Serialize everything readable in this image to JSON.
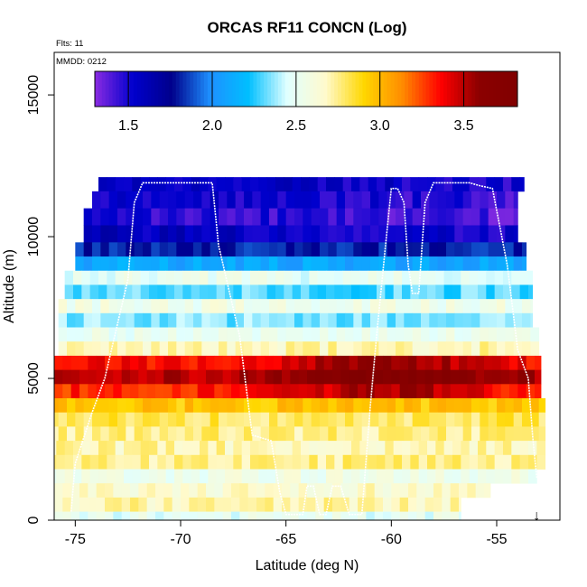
{
  "chart_data": {
    "type": "heatmap",
    "title": "ORCAS RF11 CONCN (Log)",
    "flights_label": "Flts: 11",
    "date_label": "MMDD: 0212",
    "xlabel": "Latitude (deg N)",
    "ylabel": "Altitude (m)",
    "xlim": [
      -76.0,
      -52.0
    ],
    "ylim": [
      0,
      16500
    ],
    "x_ticks": [
      -75,
      -70,
      -65,
      -60,
      -55
    ],
    "x_tick_labels": [
      "-75",
      "-70",
      "-65",
      "-60",
      "-55"
    ],
    "y_ticks": [
      0,
      5000,
      10000,
      15000
    ],
    "y_tick_labels": [
      "0",
      "5000",
      "10000",
      "15000"
    ],
    "colorbar": {
      "min": 1.3,
      "max": 3.82,
      "ticks": [
        1.5,
        2.0,
        2.5,
        3.0,
        3.5
      ],
      "tick_labels": [
        "1.5",
        "2.0",
        "2.5",
        "3.0",
        "3.5"
      ],
      "colors": [
        "#8a2be2",
        "#0000cd",
        "#00008b",
        "#1e90ff",
        "#00bfff",
        "#e0ffff",
        "#fffacd",
        "#ffd700",
        "#ff8c00",
        "#ff0000",
        "#8b0000",
        "#800000"
      ]
    },
    "altitude_bands_m": [
      {
        "y0": 11600,
        "y1": 12100,
        "v": 1.6
      },
      {
        "y0": 11000,
        "y1": 11600,
        "v": 1.55
      },
      {
        "y0": 10400,
        "y1": 11000,
        "v": 1.5
      },
      {
        "y0": 9800,
        "y1": 10400,
        "v": 1.6
      },
      {
        "y0": 9300,
        "y1": 9800,
        "v": 1.8
      },
      {
        "y0": 8800,
        "y1": 9300,
        "v": 2.1
      },
      {
        "y0": 8300,
        "y1": 8800,
        "v": 2.5
      },
      {
        "y0": 7800,
        "y1": 8300,
        "v": 2.3
      },
      {
        "y0": 7300,
        "y1": 7800,
        "v": 2.55
      },
      {
        "y0": 6800,
        "y1": 7300,
        "v": 2.35
      },
      {
        "y0": 6300,
        "y1": 6800,
        "v": 2.5
      },
      {
        "y0": 5800,
        "y1": 6300,
        "v": 2.7
      },
      {
        "y0": 5300,
        "y1": 5800,
        "v": 3.35
      },
      {
        "y0": 4800,
        "y1": 5300,
        "v": 3.5
      },
      {
        "y0": 4300,
        "y1": 4800,
        "v": 3.3
      },
      {
        "y0": 3800,
        "y1": 4300,
        "v": 2.95
      },
      {
        "y0": 3300,
        "y1": 3800,
        "v": 2.8
      },
      {
        "y0": 2800,
        "y1": 3300,
        "v": 2.75
      },
      {
        "y0": 2300,
        "y1": 2800,
        "v": 2.7
      },
      {
        "y0": 1800,
        "y1": 2300,
        "v": 2.75
      },
      {
        "y0": 1300,
        "y1": 1800,
        "v": 2.55
      },
      {
        "y0": 800,
        "y1": 1300,
        "v": 2.65
      },
      {
        "y0": 300,
        "y1": 800,
        "v": 2.7
      },
      {
        "y0": 0,
        "y1": 300,
        "v": 2.5
      }
    ],
    "data_extent": [
      {
        "y0": 11600,
        "y1": 12200,
        "lon": -73.9,
        "lat_max": -53.7
      },
      {
        "y0": 10800,
        "y1": 11600,
        "lon": -74.2,
        "lat_max": -54.0
      },
      {
        "y0": 10000,
        "y1": 10800,
        "lon": -74.6,
        "lat_max": -54.0
      },
      {
        "y0": 9000,
        "y1": 10000,
        "lon": -75.0,
        "lat_max": -53.6
      },
      {
        "y0": 8000,
        "y1": 9000,
        "lon": -75.5,
        "lat_max": -53.3
      },
      {
        "y0": 7000,
        "y1": 8000,
        "lon": -75.8,
        "lat_max": -53.3
      },
      {
        "y0": 6000,
        "y1": 7000,
        "lon": -75.8,
        "lat_max": -53.0
      },
      {
        "y0": 4500,
        "y1": 6000,
        "lon": -76.0,
        "lat_max": -52.9
      },
      {
        "y0": 3000,
        "y1": 4500,
        "lon": -76.2,
        "lat_max": -52.7
      },
      {
        "y0": 2000,
        "y1": 3000,
        "lon": -76.3,
        "lat_max": -52.7
      },
      {
        "y0": 1300,
        "y1": 2000,
        "lon": -76.3,
        "lat_max": -53.1
      },
      {
        "y0": 800,
        "y1": 1300,
        "lon": -76.4,
        "lat_max": -55.3
      },
      {
        "y0": 0,
        "y1": 800,
        "lon": -76.4,
        "lat_max": -56.7
      }
    ],
    "flight_track": {
      "lat": [
        -75.2,
        -75.0,
        -74.2,
        -73.6,
        -72.5,
        -72.2,
        -71.8,
        -70.0,
        -69.1,
        -68.5,
        -68.2,
        -67.2,
        -66.6,
        -65.7,
        -65.3,
        -65.0,
        -64.2,
        -64.0,
        -63.7,
        -63.4,
        -63.1,
        -62.8,
        -62.4,
        -62.0,
        -61.4,
        -61.0,
        -60.7,
        -60.3,
        -60.0,
        -59.7,
        -59.4,
        -59.2,
        -59.0,
        -58.7,
        -58.4,
        -58.0,
        -57.6,
        -57.0,
        -56.3,
        -55.8,
        -55.2,
        -54.5,
        -54.0,
        -53.5,
        -53.3,
        -53.1
      ],
      "alt": [
        300,
        2000,
        3800,
        5000,
        8500,
        11200,
        11900,
        11900,
        11900,
        11900,
        9700,
        6500,
        3000,
        2800,
        1000,
        200,
        200,
        1200,
        1200,
        200,
        200,
        1200,
        1200,
        200,
        200,
        4000,
        6500,
        9500,
        11700,
        11700,
        11200,
        9000,
        8000,
        8000,
        11200,
        11900,
        11900,
        11900,
        11900,
        11800,
        11700,
        9000,
        6000,
        5000,
        3000,
        1500
      ],
      "color": "#ffffff"
    },
    "marker": {
      "lat": -53.1,
      "symbol": "↓"
    }
  }
}
